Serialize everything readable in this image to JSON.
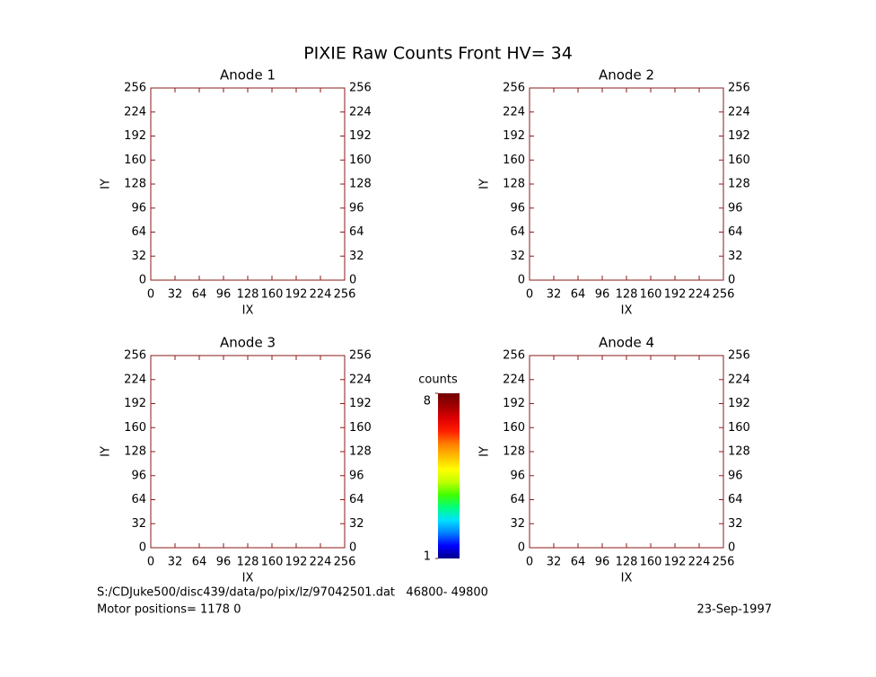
{
  "title": "PIXIE Raw Counts Front HV= 34",
  "chart_data": [
    {
      "type": "heatmap",
      "title": "Anode 1",
      "xlabel": "IX",
      "ylabel": "IY",
      "xlim": [
        0,
        256
      ],
      "ylim": [
        0,
        256
      ],
      "xticks": [
        0,
        32,
        64,
        96,
        128,
        160,
        192,
        224,
        256
      ],
      "yticks": [
        0,
        32,
        64,
        96,
        128,
        160,
        192,
        224,
        256
      ]
    },
    {
      "type": "heatmap",
      "title": "Anode 2",
      "xlabel": "IX",
      "ylabel": "IY",
      "xlim": [
        0,
        256
      ],
      "ylim": [
        0,
        256
      ],
      "xticks": [
        0,
        32,
        64,
        96,
        128,
        160,
        192,
        224,
        256
      ],
      "yticks": [
        0,
        32,
        64,
        96,
        128,
        160,
        192,
        224,
        256
      ]
    },
    {
      "type": "heatmap",
      "title": "Anode 3",
      "xlabel": "IX",
      "ylabel": "IY",
      "xlim": [
        0,
        256
      ],
      "ylim": [
        0,
        256
      ],
      "xticks": [
        0,
        32,
        64,
        96,
        128,
        160,
        192,
        224,
        256
      ],
      "yticks": [
        0,
        32,
        64,
        96,
        128,
        160,
        192,
        224,
        256
      ]
    },
    {
      "type": "heatmap",
      "title": "Anode 4",
      "xlabel": "IX",
      "ylabel": "IY",
      "xlim": [
        0,
        256
      ],
      "ylim": [
        0,
        256
      ],
      "xticks": [
        0,
        32,
        64,
        96,
        128,
        160,
        192,
        224,
        256
      ],
      "yticks": [
        0,
        32,
        64,
        96,
        128,
        160,
        192,
        224,
        256
      ]
    }
  ],
  "colorbar": {
    "label": "counts",
    "lim": [
      1,
      8
    ],
    "ticks": [
      1,
      8
    ],
    "colors": [
      "#00008b",
      "#0000ff",
      "#0080ff",
      "#00e0ff",
      "#00ff80",
      "#40ff00",
      "#c0ff00",
      "#ffff00",
      "#ffc000",
      "#ff8000",
      "#ff2000",
      "#e00000",
      "#a00000",
      "#700000"
    ]
  },
  "footer": {
    "file": "S:/CDJuke500/disc439/data/po/pix/lz/97042501.dat   46800- 49800",
    "motor": "Motor positions= 1178 0",
    "date": "23-Sep-1997"
  }
}
